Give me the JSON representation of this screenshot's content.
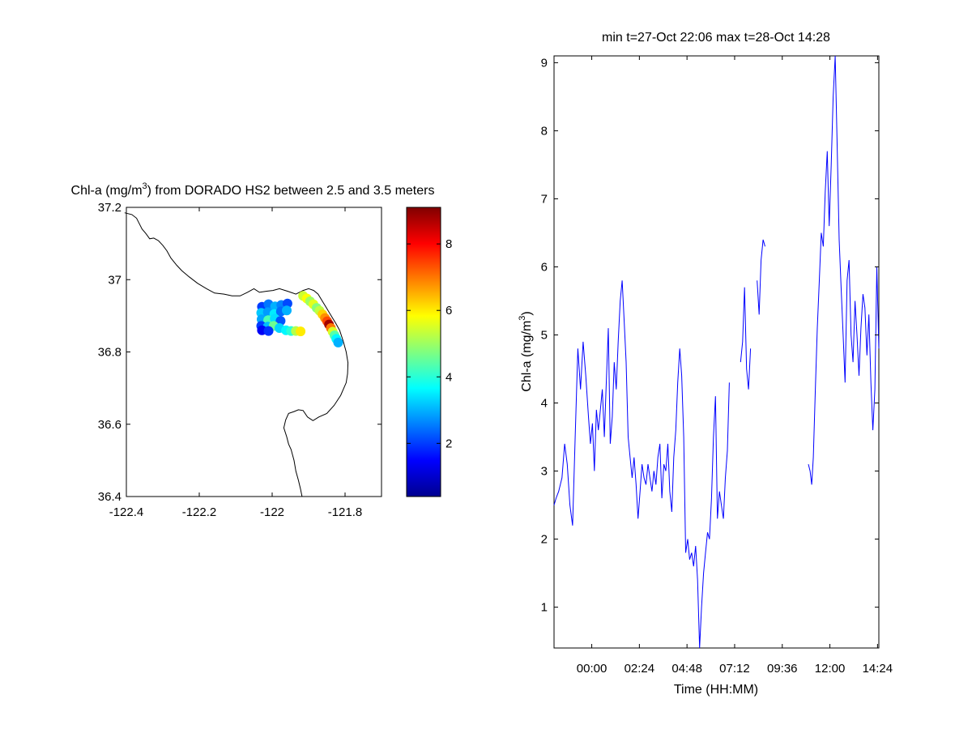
{
  "chart_data": [
    {
      "type": "scatter",
      "title": "Chl-a (mg/m",
      "title_sup": "3",
      "title_rest": ") from DORADO HS2 between 2.5 and 3.5 meters",
      "xlabel": "",
      "ylabel": "",
      "xlim": [
        -122.4,
        -121.7
      ],
      "ylim": [
        36.4,
        37.2
      ],
      "xticks": [
        -122.4,
        -122.2,
        -122,
        -121.8
      ],
      "xtick_labels": [
        "-122.4",
        "-122.2",
        "-122",
        "-121.8"
      ],
      "yticks": [
        36.4,
        36.6,
        36.8,
        37,
        37.2
      ],
      "ytick_labels": [
        "36.4",
        "36.6",
        "36.8",
        "37",
        "37.2"
      ],
      "grid": false,
      "coastline": [
        [
          -122.405,
          37.185
        ],
        [
          -122.385,
          37.18
        ],
        [
          -122.372,
          37.17
        ],
        [
          -122.362,
          37.15
        ],
        [
          -122.357,
          37.14
        ],
        [
          -122.347,
          37.128
        ],
        [
          -122.336,
          37.113
        ],
        [
          -122.325,
          37.115
        ],
        [
          -122.312,
          37.108
        ],
        [
          -122.3,
          37.095
        ],
        [
          -122.289,
          37.08
        ],
        [
          -122.278,
          37.06
        ],
        [
          -122.262,
          37.04
        ],
        [
          -122.248,
          37.025
        ],
        [
          -122.228,
          37.008
        ],
        [
          -122.205,
          36.99
        ],
        [
          -122.18,
          36.975
        ],
        [
          -122.158,
          36.963
        ],
        [
          -122.132,
          36.96
        ],
        [
          -122.11,
          36.955
        ],
        [
          -122.088,
          36.955
        ],
        [
          -122.068,
          36.965
        ],
        [
          -122.05,
          36.975
        ],
        [
          -122.035,
          36.965
        ],
        [
          -122.015,
          36.968
        ],
        [
          -121.998,
          36.97
        ],
        [
          -121.98,
          36.975
        ],
        [
          -121.958,
          36.968
        ],
        [
          -121.935,
          36.96
        ],
        [
          -121.915,
          36.97
        ],
        [
          -121.9,
          36.975
        ],
        [
          -121.886,
          36.97
        ],
        [
          -121.874,
          36.96
        ],
        [
          -121.862,
          36.94
        ],
        [
          -121.85,
          36.92
        ],
        [
          -121.838,
          36.9
        ],
        [
          -121.826,
          36.88
        ],
        [
          -121.815,
          36.86
        ],
        [
          -121.805,
          36.83
        ],
        [
          -121.797,
          36.8
        ],
        [
          -121.792,
          36.77
        ],
        [
          -121.793,
          36.74
        ],
        [
          -121.797,
          36.715
        ],
        [
          -121.812,
          36.68
        ],
        [
          -121.83,
          36.652
        ],
        [
          -121.85,
          36.63
        ],
        [
          -121.872,
          36.62
        ],
        [
          -121.888,
          36.61
        ],
        [
          -121.903,
          36.62
        ],
        [
          -121.915,
          36.638
        ],
        [
          -121.928,
          36.64
        ],
        [
          -121.94,
          36.635
        ],
        [
          -121.955,
          36.63
        ],
        [
          -121.963,
          36.612
        ],
        [
          -121.968,
          36.59
        ],
        [
          -121.96,
          36.565
        ],
        [
          -121.955,
          36.545
        ],
        [
          -121.948,
          36.53
        ],
        [
          -121.944,
          36.515
        ],
        [
          -121.94,
          36.5
        ],
        [
          -121.935,
          36.47
        ],
        [
          -121.928,
          36.445
        ],
        [
          -121.922,
          36.42
        ],
        [
          -121.918,
          36.4
        ]
      ],
      "points": [
        {
          "lon": -122.028,
          "lat": 36.925,
          "v": 2.0
        },
        {
          "lon": -122.01,
          "lat": 36.932,
          "v": 2.5
        },
        {
          "lon": -121.992,
          "lat": 36.926,
          "v": 3.0
        },
        {
          "lon": -121.975,
          "lat": 36.93,
          "v": 2.6
        },
        {
          "lon": -121.958,
          "lat": 36.934,
          "v": 2.1
        },
        {
          "lon": -122.03,
          "lat": 36.908,
          "v": 3.2
        },
        {
          "lon": -122.012,
          "lat": 36.91,
          "v": 2.8
        },
        {
          "lon": -121.994,
          "lat": 36.905,
          "v": 3.5
        },
        {
          "lon": -121.976,
          "lat": 36.912,
          "v": 2.4
        },
        {
          "lon": -121.96,
          "lat": 36.915,
          "v": 3.0
        },
        {
          "lon": -122.029,
          "lat": 36.89,
          "v": 2.9
        },
        {
          "lon": -122.011,
          "lat": 36.888,
          "v": 4.3
        },
        {
          "lon": -121.993,
          "lat": 36.892,
          "v": 3.4
        },
        {
          "lon": -121.977,
          "lat": 36.886,
          "v": 2.2
        },
        {
          "lon": -122.03,
          "lat": 36.872,
          "v": 2.0
        },
        {
          "lon": -122.012,
          "lat": 36.87,
          "v": 3.1
        },
        {
          "lon": -121.996,
          "lat": 36.872,
          "v": 4.6
        },
        {
          "lon": -121.98,
          "lat": 36.866,
          "v": 3.3
        },
        {
          "lon": -122.028,
          "lat": 36.86,
          "v": 1.4
        },
        {
          "lon": -122.01,
          "lat": 36.858,
          "v": 1.9
        },
        {
          "lon": -121.962,
          "lat": 36.86,
          "v": 3.6
        },
        {
          "lon": -121.948,
          "lat": 36.858,
          "v": 4.0
        },
        {
          "lon": -121.935,
          "lat": 36.858,
          "v": 5.2
        },
        {
          "lon": -121.922,
          "lat": 36.857,
          "v": 6.0
        },
        {
          "lon": -121.915,
          "lat": 36.955,
          "v": 5.4
        },
        {
          "lon": -121.905,
          "lat": 36.948,
          "v": 5.8
        },
        {
          "lon": -121.896,
          "lat": 36.94,
          "v": 5.0
        },
        {
          "lon": -121.887,
          "lat": 36.932,
          "v": 5.6
        },
        {
          "lon": -121.878,
          "lat": 36.922,
          "v": 4.8
        },
        {
          "lon": -121.87,
          "lat": 36.914,
          "v": 5.3
        },
        {
          "lon": -121.862,
          "lat": 36.904,
          "v": 6.2
        },
        {
          "lon": -121.855,
          "lat": 36.894,
          "v": 6.8
        },
        {
          "lon": -121.849,
          "lat": 36.885,
          "v": 7.4
        },
        {
          "lon": -121.844,
          "lat": 36.876,
          "v": 8.8
        },
        {
          "lon": -121.839,
          "lat": 36.866,
          "v": 7.0
        },
        {
          "lon": -121.834,
          "lat": 36.856,
          "v": 5.5
        },
        {
          "lon": -121.829,
          "lat": 36.846,
          "v": 4.4
        },
        {
          "lon": -121.824,
          "lat": 36.836,
          "v": 3.6
        },
        {
          "lon": -121.819,
          "lat": 36.826,
          "v": 3.0
        }
      ],
      "colorbar": {
        "min": 0.4,
        "max": 9.1,
        "ticks": [
          2,
          4,
          6,
          8
        ],
        "tick_labels": [
          "2",
          "4",
          "6",
          "8"
        ],
        "colormap": "jet"
      }
    },
    {
      "type": "line",
      "title": "min t=27-Oct 22:06 max t=28-Oct 14:28",
      "xlabel": "Time (HH:MM)",
      "ylabel": "Chl-a (mg/m",
      "ylabel_sup": "3",
      "ylabel_rest": ")",
      "xlim": [
        "27-Oct 22:06",
        "28-Oct 14:28"
      ],
      "ylim": [
        0.4,
        9.1
      ],
      "xticks": [
        "28-Oct 00:00",
        "28-Oct 02:24",
        "28-Oct 04:48",
        "28-Oct 07:12",
        "28-Oct 09:36",
        "28-Oct 12:00",
        "28-Oct 14:24"
      ],
      "xtick_labels": [
        "00:00",
        "02:24",
        "04:48",
        "07:12",
        "09:36",
        "12:00",
        "14:24"
      ],
      "yticks": [
        1,
        2,
        3,
        4,
        5,
        6,
        7,
        8,
        9
      ],
      "ytick_labels": [
        "1",
        "2",
        "3",
        "4",
        "5",
        "6",
        "7",
        "8",
        "9"
      ],
      "grid": false,
      "color": "#0000ff",
      "segments": [
        {
          "t": [
            "27-Oct 22:06",
            "27-Oct 22:12",
            "27-Oct 22:20",
            "27-Oct 22:30",
            "27-Oct 22:38",
            "27-Oct 22:46",
            "27-Oct 22:54",
            "27-Oct 23:02",
            "27-Oct 23:10",
            "27-Oct 23:18",
            "27-Oct 23:26",
            "27-Oct 23:34",
            "27-Oct 23:42",
            "27-Oct 23:50",
            "27-Oct 23:56",
            "28-Oct 00:02",
            "28-Oct 00:08",
            "28-Oct 00:14",
            "28-Oct 00:20",
            "28-Oct 00:26",
            "28-Oct 00:32",
            "28-Oct 00:38",
            "28-Oct 00:44",
            "28-Oct 00:50",
            "28-Oct 00:56",
            "28-Oct 01:02",
            "28-Oct 01:08",
            "28-Oct 01:14",
            "28-Oct 01:20",
            "28-Oct 01:26",
            "28-Oct 01:32",
            "28-Oct 01:38",
            "28-Oct 01:44",
            "28-Oct 01:50",
            "28-Oct 01:56",
            "28-Oct 02:02",
            "28-Oct 02:08",
            "28-Oct 02:14",
            "28-Oct 02:20",
            "28-Oct 02:26",
            "28-Oct 02:32",
            "28-Oct 02:38",
            "28-Oct 02:44",
            "28-Oct 02:50",
            "28-Oct 02:56",
            "28-Oct 03:02",
            "28-Oct 03:08",
            "28-Oct 03:14",
            "28-Oct 03:20",
            "28-Oct 03:26",
            "28-Oct 03:32",
            "28-Oct 03:38",
            "28-Oct 03:44",
            "28-Oct 03:50",
            "28-Oct 03:56",
            "28-Oct 04:02",
            "28-Oct 04:08",
            "28-Oct 04:14",
            "28-Oct 04:20",
            "28-Oct 04:26",
            "28-Oct 04:32",
            "28-Oct 04:38",
            "28-Oct 04:44",
            "28-Oct 04:50",
            "28-Oct 04:56",
            "28-Oct 05:02",
            "28-Oct 05:08",
            "28-Oct 05:14",
            "28-Oct 05:20",
            "28-Oct 05:26",
            "28-Oct 05:32",
            "28-Oct 05:38",
            "28-Oct 05:44",
            "28-Oct 05:50",
            "28-Oct 05:56",
            "28-Oct 06:02",
            "28-Oct 06:08",
            "28-Oct 06:14",
            "28-Oct 06:20",
            "28-Oct 06:26",
            "28-Oct 06:32",
            "28-Oct 06:38",
            "28-Oct 06:44",
            "28-Oct 06:50",
            "28-Oct 06:56"
          ],
          "v": [
            2.5,
            2.6,
            2.7,
            2.9,
            3.4,
            3.1,
            2.5,
            2.2,
            3.5,
            4.8,
            4.2,
            4.9,
            4.4,
            3.8,
            3.4,
            3.7,
            3.0,
            3.9,
            3.6,
            3.9,
            4.2,
            3.5,
            4.3,
            5.1,
            3.4,
            3.8,
            4.6,
            4.2,
            4.9,
            5.5,
            5.8,
            5.2,
            4.6,
            3.5,
            3.2,
            2.9,
            3.2,
            2.8,
            2.3,
            2.7,
            3.1,
            2.9,
            2.8,
            3.1,
            2.9,
            2.7,
            3.0,
            2.8,
            3.2,
            3.4,
            2.6,
            3.1,
            3.0,
            3.4,
            2.7,
            2.4,
            3.2,
            3.6,
            4.3,
            4.8,
            4.4,
            3.5,
            1.8,
            2.0,
            1.7,
            1.8,
            1.6,
            1.9,
            1.4,
            0.4,
            1.0,
            1.5,
            1.8,
            2.1,
            2.0,
            2.6,
            3.5,
            4.1,
            2.3,
            2.7,
            2.5,
            2.3,
            2.9,
            3.3,
            4.3
          ]
        },
        {
          "t": [
            "28-Oct 07:30",
            "28-Oct 07:36",
            "28-Oct 07:42",
            "28-Oct 07:48",
            "28-Oct 07:54",
            "28-Oct 08:00"
          ],
          "v": [
            4.6,
            4.9,
            5.7,
            4.5,
            4.2,
            4.8
          ]
        },
        {
          "t": [
            "28-Oct 08:20",
            "28-Oct 08:26",
            "28-Oct 08:32",
            "28-Oct 08:38",
            "28-Oct 08:44"
          ],
          "v": [
            5.8,
            5.3,
            6.1,
            6.4,
            6.3
          ]
        },
        {
          "t": [
            "28-Oct 10:55",
            "28-Oct 11:00",
            "28-Oct 11:05",
            "28-Oct 11:10",
            "28-Oct 11:16",
            "28-Oct 11:22",
            "28-Oct 11:28",
            "28-Oct 11:34",
            "28-Oct 11:40",
            "28-Oct 11:46",
            "28-Oct 11:52",
            "28-Oct 11:58",
            "28-Oct 12:04",
            "28-Oct 12:10",
            "28-Oct 12:16",
            "28-Oct 12:22",
            "28-Oct 12:28",
            "28-Oct 12:34",
            "28-Oct 12:40",
            "28-Oct 12:46",
            "28-Oct 12:52",
            "28-Oct 12:58",
            "28-Oct 13:04",
            "28-Oct 13:10",
            "28-Oct 13:16",
            "28-Oct 13:22",
            "28-Oct 13:28",
            "28-Oct 13:34",
            "28-Oct 13:40",
            "28-Oct 13:46",
            "28-Oct 13:52",
            "28-Oct 13:58",
            "28-Oct 14:04",
            "28-Oct 14:10",
            "28-Oct 14:16",
            "28-Oct 14:22",
            "28-Oct 14:28"
          ],
          "v": [
            3.1,
            3.0,
            2.8,
            3.2,
            4.2,
            5.1,
            5.8,
            6.5,
            6.3,
            7.1,
            7.7,
            6.6,
            7.5,
            8.5,
            9.1,
            7.8,
            6.4,
            5.7,
            5.0,
            4.3,
            5.8,
            6.1,
            5.0,
            4.6,
            5.5,
            5.0,
            4.4,
            5.1,
            5.6,
            5.4,
            4.7,
            5.3,
            4.3,
            3.6,
            4.2,
            6.0,
            4.8
          ]
        }
      ]
    }
  ]
}
